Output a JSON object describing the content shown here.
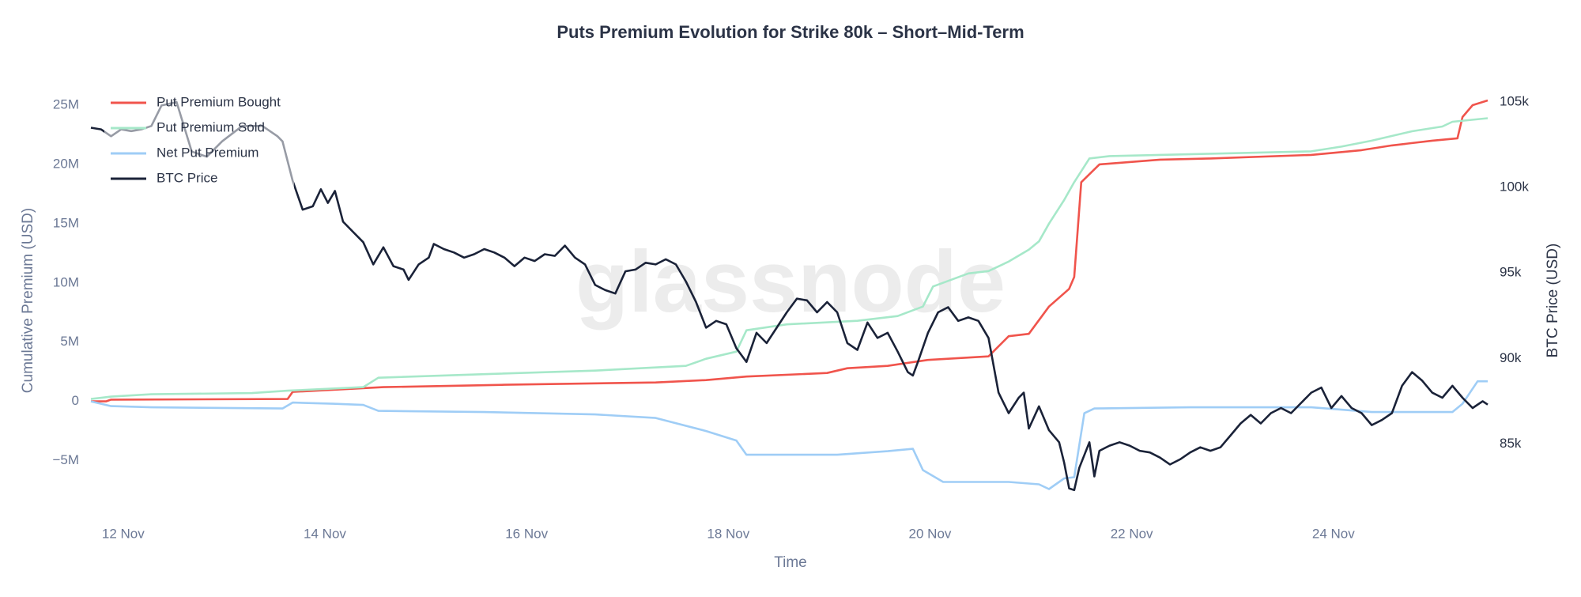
{
  "chart_data": {
    "type": "line",
    "title": "Puts Premium Evolution for Strike 80k – Short–Mid-Term",
    "watermark": "glassnode",
    "x_label": "Time",
    "y_label": "Cumulative Premium (USD)",
    "y2_label": "BTC Price (USD)",
    "xlim": [
      11.68,
      25.53
    ],
    "xticks": [
      {
        "value": 12,
        "label": "12 Nov"
      },
      {
        "value": 14,
        "label": "14 Nov"
      },
      {
        "value": 16,
        "label": "16 Nov"
      },
      {
        "value": 18,
        "label": "18 Nov"
      },
      {
        "value": 20,
        "label": "20 Nov"
      },
      {
        "value": 22,
        "label": "22 Nov"
      },
      {
        "value": 24,
        "label": "24 Nov"
      }
    ],
    "ylim": [
      -9100000,
      26200000
    ],
    "yticks": [
      {
        "value": -5000000,
        "label": "−5M"
      },
      0,
      {
        "value": 5000000,
        "label": "5M"
      },
      {
        "value": 10000000,
        "label": "10M"
      },
      {
        "value": 15000000,
        "label": "15M"
      },
      {
        "value": 20000000,
        "label": "20M"
      },
      {
        "value": 25000000,
        "label": "25M"
      }
    ],
    "y2lim": [
      81180,
      105650
    ],
    "y2ticks": [
      {
        "value": 85000,
        "label": "85k"
      },
      {
        "value": 90000,
        "label": "90k"
      },
      {
        "value": 95000,
        "label": "95k"
      },
      {
        "value": 100000,
        "label": "100k"
      },
      {
        "value": 105000,
        "label": "105k"
      }
    ],
    "grid": false,
    "legend": "top-left",
    "series": [
      {
        "name": "Put Premium Bought",
        "color": "#f0544c",
        "x": [
          11.68,
          11.83,
          11.88,
          13.63,
          13.68,
          14.58,
          15.78,
          17.28,
          17.78,
          18.18,
          18.98,
          19.18,
          19.58,
          19.98,
          20.58,
          20.78,
          20.98,
          21.18,
          21.38,
          21.43,
          21.5,
          21.68,
          22.28,
          22.78,
          23.78,
          24.28,
          24.58,
          24.98,
          25.23,
          25.28,
          25.38,
          25.53
        ],
        "values": [
          0,
          0,
          150000,
          200000,
          800000,
          1200000,
          1400000,
          1600000,
          1800000,
          2100000,
          2400000,
          2800000,
          3000000,
          3500000,
          3800000,
          5500000,
          5700000,
          8000000,
          9500000,
          10500000,
          18500000,
          20000000,
          20400000,
          20500000,
          20800000,
          21200000,
          21600000,
          22000000,
          22200000,
          24000000,
          25000000,
          25400000
        ]
      },
      {
        "name": "Put Premium Sold",
        "color": "#a6e8c9",
        "x": [
          11.68,
          11.88,
          12.28,
          13.28,
          13.63,
          14.38,
          14.53,
          15.58,
          16.68,
          17.58,
          17.78,
          18.08,
          18.18,
          18.58,
          19.28,
          19.68,
          19.93,
          20.03,
          20.38,
          20.58,
          20.78,
          20.98,
          21.08,
          21.18,
          21.33,
          21.43,
          21.58,
          21.78,
          22.78,
          23.78,
          24.08,
          24.38,
          24.78,
          25.08,
          25.18,
          25.53
        ],
        "values": [
          200000,
          400000,
          600000,
          700000,
          900000,
          1200000,
          2000000,
          2300000,
          2600000,
          3000000,
          3600000,
          4200000,
          6000000,
          6500000,
          6800000,
          7200000,
          8000000,
          9700000,
          10800000,
          11000000,
          11800000,
          12800000,
          13500000,
          15000000,
          17000000,
          18500000,
          20500000,
          20700000,
          20900000,
          21100000,
          21500000,
          22000000,
          22800000,
          23200000,
          23600000,
          23900000
        ]
      },
      {
        "name": "Net Put Premium",
        "color": "#9fcdf6",
        "x": [
          11.68,
          11.88,
          12.28,
          13.58,
          13.68,
          14.08,
          14.38,
          14.53,
          15.58,
          16.68,
          17.28,
          17.78,
          18.08,
          18.18,
          19.08,
          19.58,
          19.83,
          19.93,
          20.13,
          20.78,
          21.08,
          21.18,
          21.33,
          21.43,
          21.53,
          21.63,
          22.58,
          23.78,
          24.38,
          25.18,
          25.28,
          25.43,
          25.53
        ],
        "values": [
          0,
          -400000,
          -500000,
          -600000,
          -100000,
          -200000,
          -300000,
          -800000,
          -900000,
          -1100000,
          -1400000,
          -2500000,
          -3300000,
          -4500000,
          -4500000,
          -4200000,
          -4000000,
          -5800000,
          -6800000,
          -6800000,
          -7000000,
          -7400000,
          -6500000,
          -6400000,
          -1000000,
          -600000,
          -500000,
          -500000,
          -900000,
          -900000,
          -200000,
          1700000,
          1700000
        ]
      },
      {
        "name": "BTC Price",
        "color": "#1a2238",
        "axis": "y2",
        "x": [
          11.68,
          11.78,
          11.88,
          11.98,
          12.08,
          12.18,
          12.28,
          12.38,
          12.53,
          12.68,
          12.83,
          12.98,
          13.18,
          13.38,
          13.53,
          13.58,
          13.68,
          13.78,
          13.88,
          13.96,
          14.03,
          14.1,
          14.18,
          14.28,
          14.38,
          14.48,
          14.58,
          14.68,
          14.78,
          14.83,
          14.93,
          15.03,
          15.08,
          15.18,
          15.28,
          15.38,
          15.48,
          15.58,
          15.68,
          15.78,
          15.88,
          15.98,
          16.08,
          16.18,
          16.28,
          16.38,
          16.48,
          16.58,
          16.68,
          16.78,
          16.88,
          16.98,
          17.08,
          17.18,
          17.28,
          17.38,
          17.48,
          17.58,
          17.68,
          17.78,
          17.88,
          17.98,
          18.08,
          18.18,
          18.28,
          18.38,
          18.48,
          18.58,
          18.68,
          18.78,
          18.88,
          18.98,
          19.08,
          19.18,
          19.28,
          19.38,
          19.48,
          19.58,
          19.68,
          19.78,
          19.83,
          19.88,
          19.98,
          20.08,
          20.18,
          20.28,
          20.38,
          20.48,
          20.58,
          20.68,
          20.78,
          20.88,
          20.93,
          20.98,
          21.08,
          21.18,
          21.28,
          21.33,
          21.38,
          21.43,
          21.48,
          21.58,
          21.63,
          21.68,
          21.78,
          21.88,
          21.98,
          22.08,
          22.18,
          22.28,
          22.38,
          22.48,
          22.58,
          22.68,
          22.78,
          22.88,
          22.98,
          23.08,
          23.18,
          23.28,
          23.38,
          23.48,
          23.58,
          23.68,
          23.78,
          23.88,
          23.98,
          24.08,
          24.18,
          24.28,
          24.38,
          24.48,
          24.58,
          24.68,
          24.78,
          24.88,
          24.98,
          25.08,
          25.18,
          25.28,
          25.38,
          25.48,
          25.53
        ],
        "values": [
          103500,
          103400,
          103000,
          103400,
          103300,
          103400,
          103600,
          104800,
          105000,
          102100,
          101800,
          102700,
          103600,
          103600,
          103000,
          102700,
          100400,
          98700,
          98900,
          99900,
          99100,
          99800,
          98000,
          97400,
          96800,
          95500,
          96500,
          95400,
          95200,
          94600,
          95500,
          95900,
          96700,
          96400,
          96200,
          95900,
          96100,
          96400,
          96200,
          95900,
          95400,
          95900,
          95700,
          96100,
          96000,
          96600,
          95900,
          95500,
          94300,
          94000,
          93800,
          95100,
          95200,
          95600,
          95500,
          95800,
          95500,
          94500,
          93300,
          91800,
          92200,
          92000,
          90600,
          89800,
          91500,
          90900,
          91800,
          92700,
          93500,
          93400,
          92700,
          93300,
          92700,
          90900,
          90500,
          92100,
          91200,
          91500,
          90400,
          89200,
          89000,
          89800,
          91500,
          92700,
          93000,
          92200,
          92400,
          92200,
          91200,
          88000,
          86800,
          87700,
          88000,
          85900,
          87200,
          85800,
          85100,
          83900,
          82400,
          82300,
          83600,
          85100,
          83100,
          84600,
          84900,
          85100,
          84900,
          84600,
          84500,
          84200,
          83800,
          84100,
          84500,
          84800,
          84600,
          84800,
          85500,
          86200,
          86700,
          86200,
          86800,
          87100,
          86800,
          87400,
          88000,
          88300,
          87100,
          87800,
          87100,
          86800,
          86100,
          86400,
          86800,
          88400,
          89200,
          88700,
          88000,
          87700,
          88400,
          87700,
          87100,
          87500,
          87300
        ]
      }
    ]
  }
}
